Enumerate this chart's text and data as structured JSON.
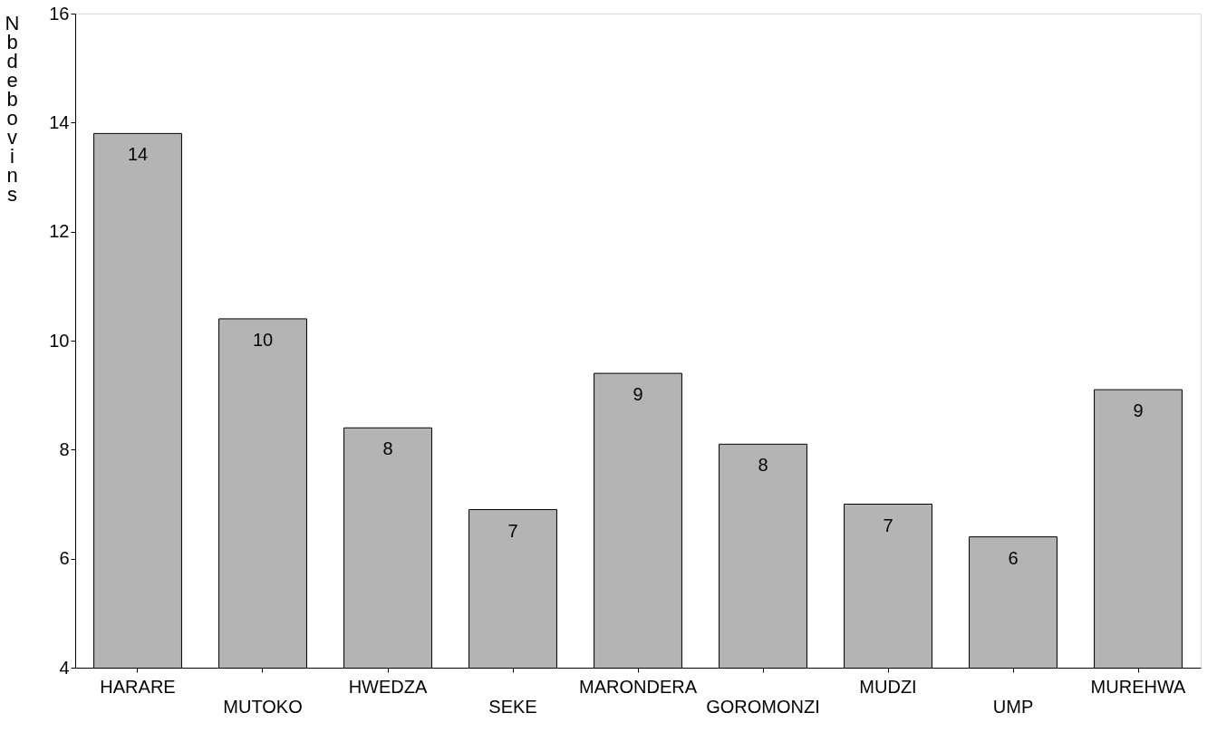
{
  "chart_data": {
    "type": "bar",
    "ylabel": "Nb de bovins",
    "categories": [
      "HARARE",
      "MUTOKO",
      "HWEDZA",
      "SEKE",
      "MARONDERA",
      "GOROMONZI",
      "MUDZI",
      "UMP",
      "MUREHWA"
    ],
    "values": [
      13.8,
      10.4,
      8.4,
      6.9,
      9.4,
      8.1,
      7.0,
      6.4,
      9.1
    ],
    "value_labels": [
      "14",
      "10",
      "8",
      "7",
      "9",
      "8",
      "7",
      "6",
      "9"
    ],
    "color": "#b4b4b4",
    "ylim": [
      4,
      16
    ],
    "yticks": [
      4,
      6,
      8,
      10,
      12,
      14,
      16
    ],
    "grid": false
  }
}
